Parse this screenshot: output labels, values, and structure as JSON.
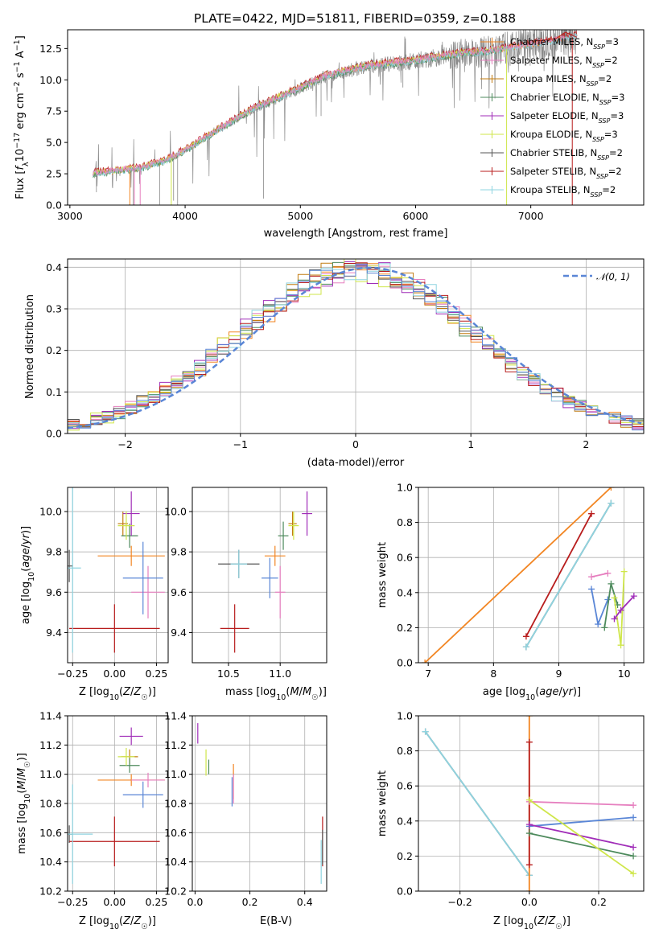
{
  "figure": {
    "title": "PLATE=0422, MJD=51811, FIBERID=0359, z=0.188"
  },
  "colors": {
    "Chabrier MILES": "#f28522",
    "Salpeter MILES": "#e67fbf",
    "Kroupa MILES": "#c27c11",
    "Chabrier ELODIE": "#4d8a5c",
    "Salpeter ELODIE": "#a02db8",
    "Kroupa ELODIE": "#cfe64a",
    "Chabrier STELIB": "#555555",
    "Salpeter STELIB": "#b81d1d",
    "Kroupa STELIB": "#8fd4e0",
    "data_spectrum": "#8a8a8a",
    "normal_curve": "#5a86d6",
    "blue_model": "#5a86d6"
  },
  "chart_data": [
    {
      "id": "spectrum",
      "type": "line",
      "title": "PLATE=0422, MJD=51811, FIBERID=0359, z=0.188",
      "xlabel": "wavelength [Angstrom, rest frame]",
      "ylabel": "Flux [f_λ 10^-17 erg cm^-2 s^-1 A^-1]",
      "xlim": [
        2980,
        7980
      ],
      "ylim": [
        0,
        14
      ],
      "xticks": [
        3000,
        4000,
        5000,
        6000,
        7000
      ],
      "yticks": [
        0.0,
        2.5,
        5.0,
        7.5,
        10.0,
        12.5
      ],
      "x": [
        3200,
        3400,
        3600,
        3800,
        4000,
        4200,
        4400,
        4600,
        4800,
        5000,
        5200,
        5400,
        5600,
        5800,
        6000,
        6200,
        6400,
        6600,
        6800,
        7000,
        7200,
        7400
      ],
      "y": [
        2.5,
        2.7,
        2.9,
        3.4,
        4.3,
        5.5,
        6.6,
        7.7,
        8.5,
        9.3,
        10.2,
        10.7,
        11.1,
        11.3,
        11.5,
        11.8,
        12.1,
        12.2,
        12.5,
        12.8,
        13.1,
        13.5
      ],
      "legend_position": "upper right",
      "legend": [
        {
          "name": "Chabrier MILES, N_SSP=3",
          "text": "Chabrier MILES, N",
          "sub": "SSP",
          "suffix": "=3"
        },
        {
          "name": "Salpeter MILES, N_SSP=2",
          "text": "Salpeter MILES, N",
          "sub": "SSP",
          "suffix": "=2"
        },
        {
          "name": "Kroupa MILES, N_SSP=2",
          "text": "Kroupa MILES, N",
          "sub": "SSP",
          "suffix": "=2"
        },
        {
          "name": "Chabrier ELODIE, N_SSP=3",
          "text": "Chabrier ELODIE, N",
          "sub": "SSP",
          "suffix": "=3"
        },
        {
          "name": "Salpeter ELODIE, N_SSP=3",
          "text": "Salpeter ELODIE, N",
          "sub": "SSP",
          "suffix": "=3"
        },
        {
          "name": "Kroupa ELODIE, N_SSP=3",
          "text": "Kroupa ELODIE, N",
          "sub": "SSP",
          "suffix": "=3"
        },
        {
          "name": "Chabrier STELIB, N_SSP=2",
          "text": "Chabrier STELIB, N",
          "sub": "SSP",
          "suffix": "=2"
        },
        {
          "name": "Salpeter STELIB, N_SSP=2",
          "text": "Salpeter STELIB, N",
          "sub": "SSP",
          "suffix": "=2"
        },
        {
          "name": "Kroupa STELIB, N_SSP=2",
          "text": "Kroupa STELIB, N",
          "sub": "SSP",
          "suffix": "=2"
        }
      ]
    },
    {
      "id": "residuals",
      "type": "line",
      "xlabel": "(data-model)/error",
      "ylabel": "Normed distribution",
      "xlim": [
        -2.5,
        2.5
      ],
      "ylim": [
        0,
        0.42
      ],
      "xticks": [
        -2,
        -1,
        0,
        1,
        2
      ],
      "yticks": [
        0.0,
        0.1,
        0.2,
        0.3,
        0.4
      ],
      "legend": "𝒩(0, 1)",
      "legend_position": "upper right",
      "grid": true,
      "hist_bin_width": 0.1
    },
    {
      "id": "age_vs_Z",
      "type": "scatter",
      "xlabel": "Z [log10(Z/Z☉)]",
      "ylabel": "age [log10(age/yr)]",
      "xlim": [
        -0.28,
        0.32
      ],
      "ylim": [
        9.25,
        10.12
      ],
      "xticks": [
        -0.25,
        0.0,
        0.25
      ],
      "yticks": [
        9.4,
        9.6,
        9.8,
        10.0
      ],
      "grid": true,
      "points": [
        {
          "model": "Chabrier MILES",
          "x": 0.1,
          "y": 9.78,
          "xerr": 0.2,
          "yerr": 0.05
        },
        {
          "model": "Salpeter MILES",
          "x": 0.2,
          "y": 9.6,
          "xerr": 0.1,
          "yerr": 0.13
        },
        {
          "model": "Kroupa MILES",
          "x": 0.05,
          "y": 9.94,
          "xerr": 0.03,
          "yerr": 0.06
        },
        {
          "model": "Chabrier ELODIE",
          "x": 0.09,
          "y": 9.88,
          "xerr": 0.05,
          "yerr": 0.06
        },
        {
          "model": "Salpeter ELODIE",
          "x": 0.1,
          "y": 9.99,
          "xerr": 0.05,
          "yerr": 0.11
        },
        {
          "model": "Kroupa ELODIE",
          "x": 0.07,
          "y": 9.93,
          "xerr": 0.05,
          "yerr": 0.07
        },
        {
          "model": "Chabrier STELIB",
          "x": -0.27,
          "y": 9.73,
          "xerr": 0.02,
          "yerr": 0.08
        },
        {
          "model": "Salpeter STELIB",
          "x": 0.0,
          "y": 9.42,
          "xerr": 0.27,
          "yerr": 0.12
        },
        {
          "model": "Kroupa STELIB",
          "x": -0.25,
          "y": 9.72,
          "xerr": 0.05,
          "yerr": 0.42
        },
        {
          "model": "Blue",
          "x": 0.17,
          "y": 9.67,
          "xerr": 0.12,
          "yerr": 0.18
        }
      ]
    },
    {
      "id": "age_vs_mass",
      "type": "scatter",
      "xlabel": "mass [log10(M/M☉)]",
      "xlim": [
        10.15,
        11.45
      ],
      "ylim": [
        9.25,
        10.12
      ],
      "xticks": [
        10.5,
        11.0
      ],
      "yticks": [
        9.4,
        9.6,
        9.8,
        10.0
      ],
      "grid": true,
      "points": [
        {
          "model": "Chabrier MILES",
          "x": 10.95,
          "y": 9.78,
          "xerr": 0.1,
          "yerr": 0.05
        },
        {
          "model": "Salpeter MILES",
          "x": 11.0,
          "y": 9.6,
          "xerr": 0.05,
          "yerr": 0.13
        },
        {
          "model": "Kroupa MILES",
          "x": 11.12,
          "y": 9.94,
          "xerr": 0.04,
          "yerr": 0.06
        },
        {
          "model": "Chabrier ELODIE",
          "x": 11.03,
          "y": 9.88,
          "xerr": 0.05,
          "yerr": 0.07
        },
        {
          "model": "Salpeter ELODIE",
          "x": 11.26,
          "y": 9.99,
          "xerr": 0.05,
          "yerr": 0.11
        },
        {
          "model": "Kroupa ELODIE",
          "x": 11.13,
          "y": 9.93,
          "xerr": 0.05,
          "yerr": 0.07
        },
        {
          "model": "Chabrier STELIB",
          "x": 10.6,
          "y": 9.74,
          "xerr": 0.2,
          "yerr": 0.07
        },
        {
          "model": "Salpeter STELIB",
          "x": 10.56,
          "y": 9.42,
          "xerr": 0.14,
          "yerr": 0.12
        },
        {
          "model": "Kroupa STELIB",
          "x": 10.6,
          "y": 9.74,
          "xerr": 0.08,
          "yerr": 0.07
        },
        {
          "model": "Blue",
          "x": 10.9,
          "y": 9.67,
          "xerr": 0.08,
          "yerr": 0.1
        }
      ]
    },
    {
      "id": "mass_weight_vs_age",
      "type": "line",
      "xlabel": "age [log10(age/yr)]",
      "ylabel": "mass weight",
      "xlim": [
        6.85,
        10.3
      ],
      "ylim": [
        0,
        1.0
      ],
      "xticks": [
        7,
        8,
        9,
        10
      ],
      "yticks": [
        0.0,
        0.2,
        0.4,
        0.6,
        0.8,
        1.0
      ],
      "grid": true,
      "series": [
        {
          "model": "Chabrier MILES",
          "x": [
            6.95,
            9.8
          ],
          "y": [
            0.0,
            1.0
          ]
        },
        {
          "model": "Salpeter STELIB",
          "x": [
            8.5,
            9.5
          ],
          "y": [
            0.15,
            0.85
          ]
        },
        {
          "model": "Chabrier STELIB",
          "x": [
            8.5,
            9.8
          ],
          "y": [
            0.09,
            0.91
          ]
        },
        {
          "model": "Kroupa STELIB",
          "x": [
            8.5,
            9.8
          ],
          "y": [
            0.09,
            0.91
          ]
        },
        {
          "model": "Salpeter MILES",
          "x": [
            9.5,
            9.75
          ],
          "y": [
            0.49,
            0.51
          ]
        },
        {
          "model": "Blue",
          "x": [
            9.5,
            9.6,
            9.75
          ],
          "y": [
            0.42,
            0.22,
            0.36
          ]
        },
        {
          "model": "Chabrier ELODIE",
          "x": [
            9.7,
            9.8,
            9.9
          ],
          "y": [
            0.2,
            0.45,
            0.33
          ]
        },
        {
          "model": "Kroupa ELODIE",
          "x": [
            9.85,
            9.95,
            10.0
          ],
          "y": [
            0.37,
            0.1,
            0.52
          ]
        },
        {
          "model": "Salpeter ELODIE",
          "x": [
            9.85,
            9.95,
            10.15
          ],
          "y": [
            0.25,
            0.3,
            0.38
          ]
        }
      ]
    },
    {
      "id": "mass_vs_Z",
      "type": "scatter",
      "xlabel": "Z [log10(Z/Z☉)]",
      "ylabel": "mass [log10(M/M☉)]",
      "xlim": [
        -0.28,
        0.32
      ],
      "ylim": [
        10.2,
        11.4
      ],
      "xticks": [
        -0.25,
        0.0,
        0.25
      ],
      "yticks": [
        10.2,
        10.4,
        10.6,
        10.8,
        11.0,
        11.2,
        11.4
      ],
      "grid": true,
      "points": [
        {
          "model": "Chabrier MILES",
          "x": 0.1,
          "y": 10.96,
          "xerr": 0.2,
          "yerr": 0.04
        },
        {
          "model": "Salpeter MILES",
          "x": 0.2,
          "y": 10.96,
          "xerr": 0.1,
          "yerr": 0.05
        },
        {
          "model": "Kroupa MILES",
          "x": 0.09,
          "y": 11.12,
          "xerr": 0.05,
          "yerr": 0.05
        },
        {
          "model": "Chabrier ELODIE",
          "x": 0.09,
          "y": 11.06,
          "xerr": 0.06,
          "yerr": 0.05
        },
        {
          "model": "Salpeter ELODIE",
          "x": 0.1,
          "y": 11.26,
          "xerr": 0.07,
          "yerr": 0.06
        },
        {
          "model": "Kroupa ELODIE",
          "x": 0.07,
          "y": 11.12,
          "xerr": 0.05,
          "yerr": 0.06
        },
        {
          "model": "Chabrier STELIB",
          "x": -0.27,
          "y": 10.59,
          "xerr": 0.02,
          "yerr": 0.06
        },
        {
          "model": "Salpeter STELIB",
          "x": 0.0,
          "y": 10.54,
          "xerr": 0.27,
          "yerr": 0.17
        },
        {
          "model": "Kroupa STELIB",
          "x": -0.25,
          "y": 10.59,
          "xerr": 0.12,
          "yerr": 0.34
        },
        {
          "model": "Blue",
          "x": 0.17,
          "y": 10.86,
          "xerr": 0.12,
          "yerr": 0.09
        }
      ]
    },
    {
      "id": "mass_vs_ebv",
      "type": "scatter",
      "xlabel": "E(B-V)",
      "xlim": [
        -0.01,
        0.48
      ],
      "ylim": [
        10.2,
        11.4
      ],
      "xticks": [
        0.0,
        0.2,
        0.4
      ],
      "yticks": [
        10.2,
        10.4,
        10.6,
        10.8,
        11.0,
        11.2,
        11.4
      ],
      "grid": true,
      "points": [
        {
          "model": "Salpeter ELODIE",
          "x": 0.01,
          "y": 11.28,
          "yerr": 0.07
        },
        {
          "model": "Kroupa ELODIE",
          "x": 0.04,
          "y": 11.08,
          "yerr": 0.09
        },
        {
          "model": "Chabrier ELODIE",
          "x": 0.05,
          "y": 11.05,
          "yerr": 0.05
        },
        {
          "model": "Chabrier MILES",
          "x": 0.14,
          "y": 10.95,
          "yerr": 0.12
        },
        {
          "model": "Salpeter MILES",
          "x": 0.14,
          "y": 10.9,
          "yerr": 0.1
        },
        {
          "model": "Blue",
          "x": 0.135,
          "y": 10.88,
          "yerr": 0.1
        },
        {
          "model": "Salpeter STELIB",
          "x": 0.465,
          "y": 10.54,
          "yerr": 0.17
        },
        {
          "model": "Kroupa STELIB",
          "x": 0.46,
          "y": 10.4,
          "yerr": 0.15
        },
        {
          "model": "Chabrier STELIB",
          "x": 0.465,
          "y": 10.5,
          "yerr": 0.12
        }
      ]
    },
    {
      "id": "mass_weight_vs_Z",
      "type": "line",
      "xlabel": "Z [log10(Z/Z☉)]",
      "ylabel": "mass weight",
      "xlim": [
        -0.32,
        0.33
      ],
      "ylim": [
        0,
        1.0
      ],
      "xticks": [
        -0.2,
        0.0,
        0.2
      ],
      "yticks": [
        0.0,
        0.2,
        0.4,
        0.6,
        0.8,
        1.0
      ],
      "grid": true,
      "series": [
        {
          "model": "Chabrier STELIB",
          "x": [
            -0.3,
            0.0
          ],
          "y": [
            0.91,
            0.09
          ]
        },
        {
          "model": "Kroupa STELIB",
          "x": [
            -0.3,
            0.0
          ],
          "y": [
            0.91,
            0.09
          ]
        },
        {
          "model": "Chabrier MILES",
          "x": [
            0.0,
            0.0
          ],
          "y": [
            0.0,
            1.0
          ]
        },
        {
          "model": "Salpeter STELIB",
          "x": [
            0.0,
            0.0
          ],
          "y": [
            0.15,
            0.85
          ]
        },
        {
          "model": "Salpeter MILES",
          "x": [
            0.0,
            0.3
          ],
          "y": [
            0.51,
            0.49
          ]
        },
        {
          "model": "Blue",
          "x": [
            0.0,
            0.3
          ],
          "y": [
            0.37,
            0.42
          ]
        },
        {
          "model": "Salpeter ELODIE",
          "x": [
            0.0,
            0.3
          ],
          "y": [
            0.38,
            0.25
          ]
        },
        {
          "model": "Chabrier ELODIE",
          "x": [
            0.0,
            0.3
          ],
          "y": [
            0.33,
            0.2
          ]
        },
        {
          "model": "Kroupa ELODIE",
          "x": [
            0.0,
            0.3
          ],
          "y": [
            0.52,
            0.1
          ]
        }
      ]
    }
  ]
}
